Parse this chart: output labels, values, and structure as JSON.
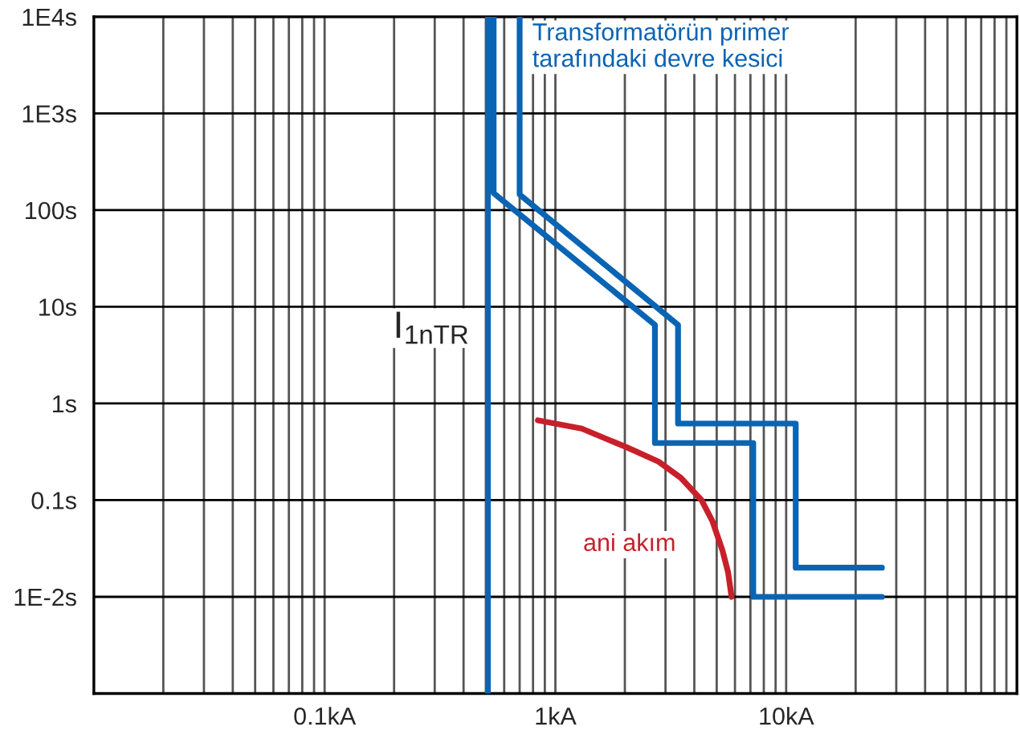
{
  "chart_data": {
    "type": "line",
    "log": "xy",
    "grid": true,
    "xlim": [
      0.01,
      100
    ],
    "ylim": [
      0.001,
      10000
    ],
    "xticks": [
      {
        "value": 0.1,
        "label": "0.1kA"
      },
      {
        "value": 1,
        "label": "1kA"
      },
      {
        "value": 10,
        "label": "10kA"
      }
    ],
    "yticks": [
      {
        "value": 0.01,
        "label": "1E-2s"
      },
      {
        "value": 0.1,
        "label": "0.1s"
      },
      {
        "value": 1,
        "label": "1s"
      },
      {
        "value": 10,
        "label": "10s"
      },
      {
        "value": 100,
        "label": "100s"
      },
      {
        "value": 1000,
        "label": "1E3s"
      },
      {
        "value": 10000,
        "label": "1E4s"
      }
    ],
    "series": [
      {
        "color": "#0a64b4",
        "x": [
          0.54,
          0.54,
          2.7,
          2.7,
          7.2,
          7.2,
          26
        ],
        "values": [
          10000,
          150,
          6.5,
          0.39,
          0.39,
          0.01,
          0.01
        ]
      },
      {
        "color": "#0a64b4",
        "x": [
          0.7,
          0.7,
          3.4,
          3.4,
          11,
          11,
          26
        ],
        "values": [
          10000,
          145,
          6.5,
          0.62,
          0.62,
          0.02,
          0.02
        ]
      },
      {
        "color": "#c8202a",
        "x": [
          0.84,
          1.3,
          2.05,
          2.8,
          3.5,
          4.3,
          4.8,
          5.3,
          5.6,
          5.8
        ],
        "values": [
          0.67,
          0.55,
          0.35,
          0.25,
          0.17,
          0.1,
          0.06,
          0.03,
          0.018,
          0.01
        ]
      }
    ],
    "ref_lines": [
      {
        "axis": "x",
        "value": 0.51,
        "label": "I$_{1nTR}$",
        "color": "#0a64b4"
      }
    ],
    "annotations": [
      "Transformatörün primer\ntarafındaki devre kesici",
      "ani akım"
    ]
  }
}
